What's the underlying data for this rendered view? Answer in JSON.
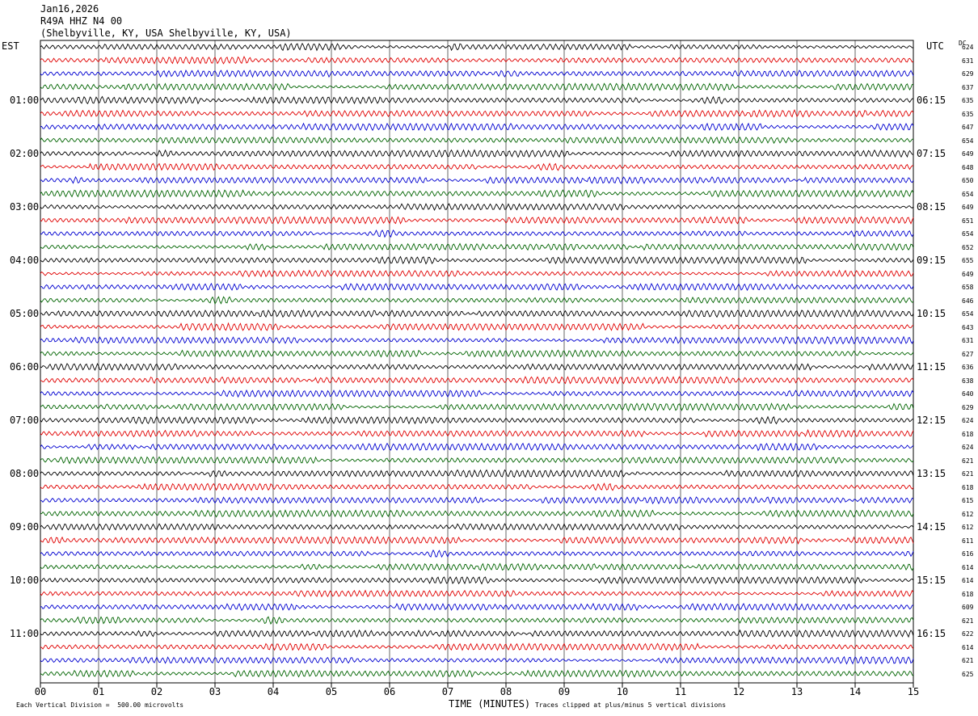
{
  "header": {
    "date": "Jan16,2026",
    "station": "R49A HHZ N4 00",
    "location": "(Shelbyville, KY, USA Shelbyville, KY, USA)"
  },
  "left_tz": "EST",
  "right_tz": "UTC",
  "dc_label": "DC",
  "left_times": [
    "01:00",
    "02:00",
    "03:00",
    "04:00",
    "05:00",
    "06:00",
    "07:00",
    "08:00",
    "09:00",
    "10:00",
    "11:00"
  ],
  "right_times": [
    "06:15",
    "07:15",
    "08:15",
    "09:15",
    "10:15",
    "11:15",
    "12:15",
    "13:15",
    "14:15",
    "15:15",
    "16:15"
  ],
  "dc_offsets": [
    "624",
    "631",
    "629",
    "637",
    "635",
    "635",
    "647",
    "654",
    "649",
    "648",
    "650",
    "654",
    "649",
    "651",
    "654",
    "652",
    "655",
    "649",
    "658",
    "646",
    "654",
    "643",
    "631",
    "627",
    "636",
    "638",
    "640",
    "629",
    "624",
    "618",
    "624",
    "621",
    "621",
    "618",
    "615",
    "612",
    "612",
    "611",
    "616",
    "614",
    "614",
    "618",
    "609",
    "621",
    "622",
    "614",
    "621",
    "625"
  ],
  "footer": {
    "scale": "Each Vertical Division =  500.00 microvolts",
    "xlabel": "TIME (MINUTES)",
    "clip_note": "Traces clipped at plus/minus 5 vertical divisions"
  },
  "chart_data": {
    "type": "line",
    "title": "R49A HHZ N4 00",
    "xlabel": "TIME (MINUTES)",
    "x_ticks": [
      "00",
      "01",
      "02",
      "03",
      "04",
      "05",
      "06",
      "07",
      "08",
      "09",
      "10",
      "11",
      "12",
      "13",
      "14",
      "15"
    ],
    "xlim": [
      0,
      15
    ],
    "traces_count": 48,
    "trace_minutes": 15,
    "trace_colors": [
      "#000000",
      "#e00000",
      "#0000d0",
      "#006400"
    ],
    "grid": true,
    "vertical_division_microvolts": 500.0,
    "clip_divisions": 5
  }
}
